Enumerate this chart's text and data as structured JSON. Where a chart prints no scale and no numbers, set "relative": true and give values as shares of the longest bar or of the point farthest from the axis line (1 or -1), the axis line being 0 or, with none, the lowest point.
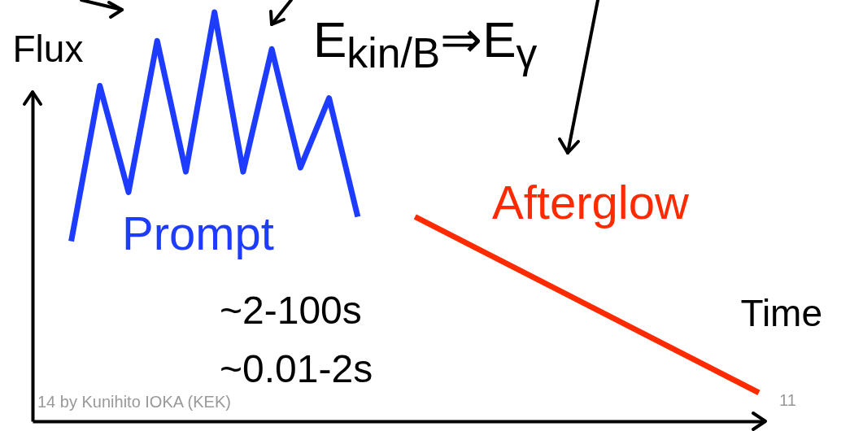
{
  "chart_data": {
    "type": "line",
    "relative": true,
    "xlabel": "Time",
    "ylabel": "Flux",
    "categories": [
      null,
      null,
      null,
      null,
      null,
      null,
      null,
      null,
      null,
      null,
      null,
      null,
      null,
      null,
      null,
      null,
      null,
      null,
      null,
      null,
      null,
      null,
      null,
      null,
      null
    ],
    "series": [
      {
        "name": "Prompt",
        "color": "#1e3cff",
        "values": [
          0.44,
          0.82,
          0.56,
          0.93,
          0.61,
          1.0,
          0.61,
          0.91,
          0.62,
          0.79,
          0.5,
          null,
          null,
          null,
          null,
          null,
          null,
          null,
          null,
          null,
          null,
          null,
          null,
          null,
          null
        ]
      },
      {
        "name": "Afterglow",
        "color": "#ff2a00",
        "values": [
          null,
          null,
          null,
          null,
          null,
          null,
          null,
          null,
          null,
          null,
          null,
          null,
          0.5,
          null,
          null,
          null,
          null,
          null,
          null,
          null,
          null,
          null,
          null,
          null,
          0.07
        ]
      }
    ],
    "annotations": [
      "E$_{kin/B}$⇒E$_{γ}$",
      "~2-100s",
      "~0.01-2s",
      "14 by Kunihito IOKA (KEK)",
      "11"
    ]
  }
}
